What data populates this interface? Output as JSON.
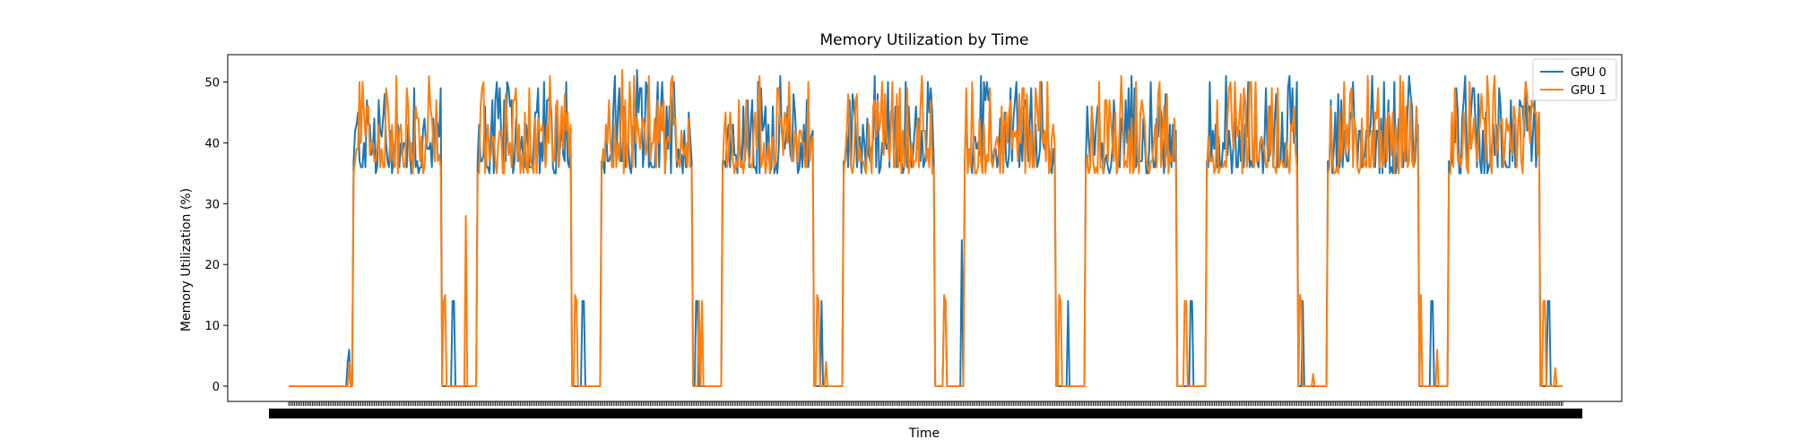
{
  "chart_data": {
    "type": "line",
    "title": "Memory Utilization by Time",
    "xlabel": "Time",
    "ylabel": "Memory Utilization (%)",
    "ylim": [
      -2.5,
      54.5
    ],
    "yticks": [
      0,
      10,
      20,
      30,
      40,
      50
    ],
    "x_tick_labels_legible": false,
    "legend": {
      "position": "top-right"
    },
    "grid": false,
    "series": [
      {
        "name": "GPU 0",
        "color": "#1f77b4"
      },
      {
        "name": "GPU 1",
        "color": "#ff7f0e"
      }
    ],
    "segments": [
      {
        "type": "idle",
        "length": 44,
        "blips": [
          [
            0,
            41,
            6
          ],
          [
            0,
            40,
            4
          ],
          [
            0,
            51,
            2
          ],
          [
            1,
            55,
            2
          ],
          [
            1,
            56,
            0
          ],
          [
            1,
            57,
            2
          ],
          [
            0,
            50,
            0
          ],
          [
            1,
            41,
            4
          ]
        ]
      },
      {
        "type": "busy",
        "length": 60,
        "range": [
          35,
          51
        ]
      },
      {
        "type": "idle",
        "length": 24,
        "blips": [
          [
            0,
            7,
            14
          ],
          [
            0,
            8,
            14
          ],
          [
            1,
            1,
            14
          ],
          [
            1,
            2,
            15
          ],
          [
            1,
            16,
            28
          ]
        ]
      },
      {
        "type": "busy",
        "length": 64,
        "range": [
          35,
          51
        ]
      },
      {
        "type": "idle",
        "length": 20,
        "blips": [
          [
            1,
            2,
            15
          ],
          [
            1,
            3,
            14
          ],
          [
            0,
            7,
            14
          ],
          [
            0,
            8,
            14
          ]
        ]
      },
      {
        "type": "busy",
        "length": 62,
        "range": [
          35,
          52
        ]
      },
      {
        "type": "idle",
        "length": 20,
        "blips": [
          [
            0,
            2,
            14
          ],
          [
            0,
            3,
            14
          ],
          [
            1,
            4,
            14
          ],
          [
            1,
            5,
            0
          ],
          [
            1,
            6,
            14
          ]
        ]
      },
      {
        "type": "busy",
        "length": 62,
        "range": [
          35,
          51
        ]
      },
      {
        "type": "idle",
        "length": 20,
        "blips": [
          [
            1,
            2,
            15
          ],
          [
            1,
            3,
            14
          ],
          [
            0,
            5,
            14
          ],
          [
            1,
            8,
            4
          ]
        ]
      },
      {
        "type": "busy",
        "length": 62,
        "range": [
          33,
          51
        ]
      },
      {
        "type": "idle",
        "length": 20,
        "blips": [
          [
            1,
            6,
            15
          ],
          [
            1,
            7,
            14
          ],
          [
            0,
            6,
            14
          ],
          [
            0,
            7,
            14
          ],
          [
            0,
            18,
            24
          ]
        ]
      },
      {
        "type": "busy",
        "length": 62,
        "range": [
          35,
          51
        ]
      },
      {
        "type": "idle",
        "length": 20,
        "blips": [
          [
            1,
            2,
            15
          ],
          [
            1,
            3,
            14
          ],
          [
            0,
            8,
            14
          ]
        ]
      },
      {
        "type": "busy",
        "length": 62,
        "range": [
          34,
          51
        ]
      },
      {
        "type": "idle",
        "length": 20,
        "blips": [
          [
            1,
            5,
            14
          ],
          [
            1,
            6,
            14
          ],
          [
            0,
            9,
            14
          ],
          [
            0,
            10,
            14
          ]
        ]
      },
      {
        "type": "busy",
        "length": 62,
        "range": [
          33,
          51
        ]
      },
      {
        "type": "idle",
        "length": 20,
        "blips": [
          [
            1,
            1,
            15
          ],
          [
            1,
            2,
            14
          ],
          [
            0,
            3,
            14
          ],
          [
            1,
            10,
            2
          ]
        ]
      },
      {
        "type": "busy",
        "length": 62,
        "range": [
          35,
          51
        ]
      },
      {
        "type": "idle",
        "length": 20,
        "blips": [
          [
            1,
            1,
            15
          ],
          [
            0,
            8,
            14
          ],
          [
            0,
            9,
            14
          ],
          [
            1,
            12,
            6
          ]
        ]
      },
      {
        "type": "busy",
        "length": 62,
        "range": [
          34,
          51
        ]
      },
      {
        "type": "idle",
        "length": 16,
        "blips": [
          [
            1,
            2,
            14
          ],
          [
            1,
            3,
            14
          ],
          [
            0,
            5,
            14
          ],
          [
            0,
            6,
            14
          ],
          [
            1,
            10,
            3
          ]
        ]
      }
    ]
  }
}
